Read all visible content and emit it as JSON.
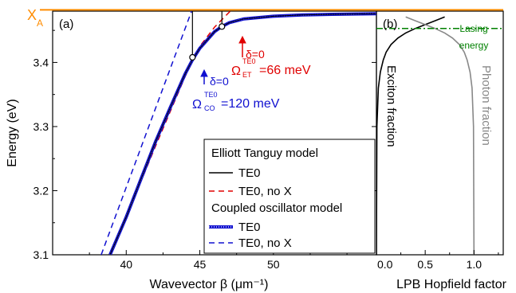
{
  "colors": {
    "black": "#000000",
    "red": "#e00000",
    "blue": "#1010d0",
    "orange": "#ff8c00",
    "green": "#008000",
    "gray": "#888888"
  },
  "chart_data": [
    {
      "type": "line",
      "panel_label": "(a)",
      "xlabel": "Wavevector β (μm⁻¹)",
      "ylabel": "Energy (eV)",
      "xlim": [
        35,
        57
      ],
      "ylim": [
        3.1,
        3.48
      ],
      "x_ticks": [
        40,
        45,
        50
      ],
      "y_ticks": [
        3.1,
        3.2,
        3.3,
        3.4
      ],
      "x_tick_labels": [
        "40",
        "45",
        "50"
      ],
      "y_tick_labels": [
        "3.1",
        "3.2",
        "3.3",
        "3.4"
      ],
      "exciton_energy_label": "X",
      "exciton_energy_sub": "A",
      "exciton_energy": 3.482,
      "series": [
        {
          "name": "TE0",
          "group": "Elliott Tanguy model",
          "style": "solid",
          "color": "#000000",
          "x": [
            38.9,
            40,
            41,
            42,
            43,
            44,
            44.5,
            45,
            46,
            46.5,
            47,
            48,
            50,
            52,
            54,
            57
          ],
          "y": [
            3.1,
            3.159,
            3.218,
            3.277,
            3.33,
            3.382,
            3.404,
            3.422,
            3.448,
            3.456,
            3.462,
            3.468,
            3.472,
            3.474,
            3.475,
            3.476
          ]
        },
        {
          "name": "TE0, no X",
          "group": "Elliott Tanguy model",
          "style": "dashed",
          "color": "#e00000",
          "x": [
            38.9,
            40,
            42,
            44,
            45,
            46,
            47.5
          ],
          "y": [
            3.1,
            3.159,
            3.27,
            3.378,
            3.425,
            3.455,
            3.49
          ]
        },
        {
          "name": "TE0",
          "group": "Coupled oscillator model",
          "style": "dotted-band",
          "color": "#1010d0",
          "x": [
            38.9,
            40,
            41,
            42,
            43,
            44,
            44.5,
            45,
            46,
            46.5,
            47,
            48,
            50,
            52,
            54,
            57
          ],
          "y": [
            3.1,
            3.159,
            3.218,
            3.277,
            3.33,
            3.382,
            3.404,
            3.422,
            3.448,
            3.456,
            3.462,
            3.468,
            3.472,
            3.474,
            3.475,
            3.476
          ]
        },
        {
          "name": "TE0, no X",
          "group": "Coupled oscillator model",
          "style": "dashed",
          "color": "#1010d0",
          "x": [
            38.3,
            44.6
          ],
          "y": [
            3.1,
            3.49
          ]
        }
      ],
      "markers": [
        {
          "x": 44.5,
          "y": 3.408
        },
        {
          "x": 46.5,
          "y": 3.456
        }
      ],
      "vertical_lines": [
        {
          "x": 44.5,
          "y_from": 3.408,
          "y_to": 3.48
        },
        {
          "x": 46.5,
          "y_from": 3.456,
          "y_to": 3.48
        }
      ],
      "annotations": {
        "et_delta": "δ=0",
        "et_omega_main": "Ω",
        "et_omega_sup": "TE0",
        "et_omega_sub": "ET",
        "et_omega_value": "=66 meV",
        "co_delta": "δ=0",
        "co_omega_main": "Ω",
        "co_omega_sup": "TE0",
        "co_omega_sub": "CO",
        "co_omega_value": "=120 meV"
      },
      "legend": {
        "placement": "bottom-right",
        "group1_title": "Elliott Tanguy model",
        "group2_title": "Coupled oscillator model"
      }
    },
    {
      "type": "line",
      "panel_label": "(b)",
      "xlabel": "LPB Hopfield factor",
      "xlim": [
        0,
        1.3
      ],
      "ylim": [
        3.1,
        3.48
      ],
      "x_ticks": [
        0,
        0.5,
        1
      ],
      "x_tick_labels": [
        "0.0",
        "0.5",
        "1.0"
      ],
      "series": [
        {
          "name": "Exciton fraction",
          "color": "#000000",
          "x": [
            0.0,
            0.005,
            0.02,
            0.04,
            0.07,
            0.1,
            0.15,
            0.22,
            0.3,
            0.4,
            0.5,
            0.6,
            0.7
          ],
          "y": [
            3.1,
            3.3,
            3.36,
            3.385,
            3.404,
            3.416,
            3.428,
            3.438,
            3.446,
            3.453,
            3.459,
            3.465,
            3.471
          ]
        },
        {
          "name": "Photon fraction",
          "color": "#888888",
          "x": [
            1.0,
            0.995,
            0.98,
            0.96,
            0.93,
            0.9,
            0.85,
            0.78,
            0.7,
            0.6,
            0.5,
            0.4,
            0.3
          ],
          "y": [
            3.1,
            3.3,
            3.36,
            3.385,
            3.404,
            3.416,
            3.428,
            3.438,
            3.446,
            3.453,
            3.459,
            3.465,
            3.471
          ]
        }
      ],
      "lasing_energy": 3.453,
      "lasing_label_line1": "Lasing",
      "lasing_label_line2": "energy"
    }
  ]
}
